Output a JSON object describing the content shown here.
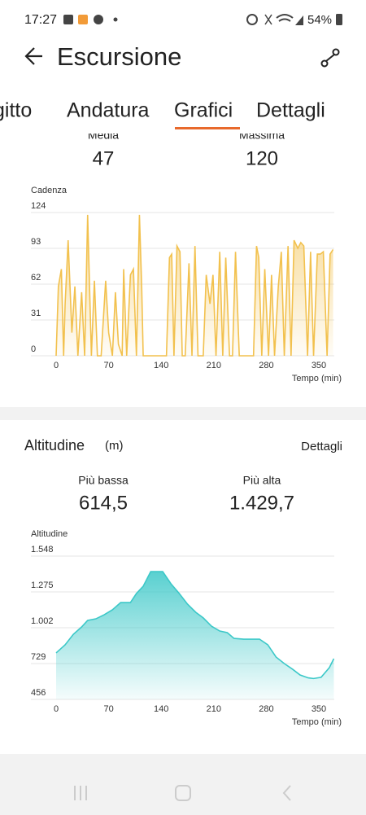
{
  "status_bar": {
    "time": "17:27",
    "battery": "54%"
  },
  "header": {
    "title": "Escursione"
  },
  "tabs": [
    "gitto",
    "Andatura",
    "Grafici",
    "Dettagli"
  ],
  "cadence": {
    "stats": [
      {
        "label": "Media",
        "value": "47"
      },
      {
        "label": "Massima",
        "value": "120"
      }
    ],
    "chart": {
      "type": "area",
      "ylabel": "Cadenza",
      "xlabel": "Tempo (min)",
      "color": "#f2c14e",
      "x": [
        0,
        3,
        7,
        10,
        12,
        16,
        21,
        25,
        29,
        34,
        38,
        42,
        47,
        51,
        55,
        60,
        66,
        70,
        75,
        79,
        83,
        88,
        90,
        94,
        99,
        103,
        107,
        111,
        114,
        116,
        118,
        147,
        151,
        154,
        157,
        161,
        165,
        168,
        172,
        177,
        181,
        185,
        189,
        193,
        196,
        200,
        205,
        209,
        213,
        218,
        222,
        226,
        231,
        235,
        239,
        244,
        250,
        263,
        267,
        270,
        274,
        278,
        283,
        287,
        291,
        296,
        300,
        304,
        309,
        313,
        317,
        322,
        326,
        330,
        335,
        339,
        343,
        348,
        352,
        356,
        361,
        365,
        369
      ],
      "values": [
        0,
        60,
        75,
        0,
        45,
        100,
        20,
        60,
        0,
        55,
        0,
        122,
        0,
        65,
        0,
        0,
        65,
        20,
        0,
        55,
        10,
        0,
        75,
        0,
        70,
        75,
        0,
        122,
        60,
        0,
        0,
        0,
        85,
        88,
        0,
        95,
        90,
        0,
        0,
        80,
        0,
        95,
        0,
        0,
        0,
        70,
        45,
        70,
        0,
        90,
        0,
        85,
        0,
        0,
        90,
        0,
        0,
        0,
        95,
        85,
        0,
        75,
        0,
        70,
        0,
        60,
        90,
        0,
        95,
        0,
        100,
        93,
        98,
        95,
        0,
        90,
        0,
        88,
        88,
        90,
        0,
        88,
        92
      ],
      "xlim": [
        0,
        370
      ],
      "xticks": [
        0,
        70,
        140,
        210,
        280,
        350
      ],
      "ylim": [
        0,
        124
      ],
      "yticks": [
        0,
        31,
        62,
        93,
        124
      ],
      "grid": true
    }
  },
  "altitude": {
    "title": "Altitudine",
    "unit": "(m)",
    "link": "Dettagli",
    "stats": [
      {
        "label": "Più bassa",
        "value": "614,5"
      },
      {
        "label": "Più alta",
        "value": "1.429,7"
      }
    ],
    "chart": {
      "type": "area",
      "ylabel": "Altitudine",
      "xlabel": "Tempo (min)",
      "color": "#3cc8c8",
      "x": [
        0,
        12,
        23,
        34,
        42,
        53,
        64,
        75,
        86,
        99,
        107,
        116,
        126,
        142,
        153,
        164,
        175,
        186,
        196,
        207,
        218,
        228,
        237,
        250,
        271,
        282,
        293,
        304,
        315,
        325,
        336,
        343,
        353,
        364,
        370
      ],
      "values": [
        810,
        872,
        952,
        1008,
        1058,
        1070,
        1101,
        1139,
        1194,
        1194,
        1263,
        1318,
        1430,
        1430,
        1337,
        1263,
        1182,
        1120,
        1077,
        1014,
        977,
        965,
        921,
        915,
        915,
        872,
        779,
        729,
        686,
        642,
        620,
        615,
        624,
        698,
        766
      ],
      "xlim": [
        0,
        370
      ],
      "xticks": [
        0,
        70,
        140,
        210,
        280,
        350
      ],
      "ylim": [
        456,
        1548
      ],
      "yticks": [
        456,
        729,
        {
          "value": 1002,
          "label": "1.002"
        },
        {
          "value": 1275,
          "label": "1.275"
        },
        {
          "value": 1548,
          "label": "1.548"
        }
      ],
      "grid": true
    }
  }
}
